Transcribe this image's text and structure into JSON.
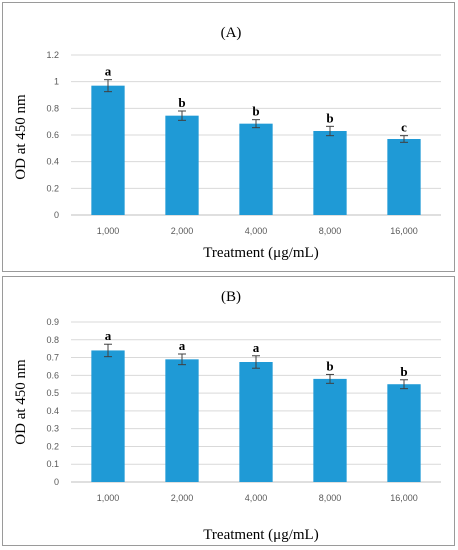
{
  "chart_data": [
    {
      "type": "bar",
      "title": "(A)",
      "xlabel": "Treatment (μg/mL)",
      "ylabel": "OD at 450 nm",
      "categories": [
        "1,000",
        "2,000",
        "4,000",
        "8,000",
        "16,000"
      ],
      "values": [
        0.97,
        0.745,
        0.685,
        0.63,
        0.57
      ],
      "errors": [
        0.045,
        0.035,
        0.03,
        0.035,
        0.025
      ],
      "letters": [
        "a",
        "b",
        "b",
        "b",
        "c"
      ],
      "ylim": [
        0,
        1.2
      ],
      "yticks": [
        "0",
        "0.2",
        "0.4",
        "0.6",
        "0.8",
        "1",
        "1.2"
      ],
      "ytick_values": [
        0,
        0.2,
        0.4,
        0.6,
        0.8,
        1.0,
        1.2
      ],
      "grid": true,
      "color": "#1f9ad6"
    },
    {
      "type": "bar",
      "title": "(B)",
      "xlabel": "Treatment (μg/mL)",
      "ylabel": "OD at 450 nm",
      "categories": [
        "1,000",
        "2,000",
        "4,000",
        "8,000",
        "16,000"
      ],
      "values": [
        0.74,
        0.69,
        0.675,
        0.58,
        0.55
      ],
      "errors": [
        0.035,
        0.03,
        0.035,
        0.025,
        0.025
      ],
      "letters": [
        "a",
        "a",
        "a",
        "b",
        "b"
      ],
      "ylim": [
        0,
        0.9
      ],
      "yticks": [
        "0",
        "0.1",
        "0.2",
        "0.3",
        "0.4",
        "0.5",
        "0.6",
        "0.7",
        "0.8",
        "0.9"
      ],
      "ytick_values": [
        0,
        0.1,
        0.2,
        0.3,
        0.4,
        0.5,
        0.6,
        0.7,
        0.8,
        0.9
      ],
      "grid": true,
      "color": "#1f9ad6"
    }
  ]
}
